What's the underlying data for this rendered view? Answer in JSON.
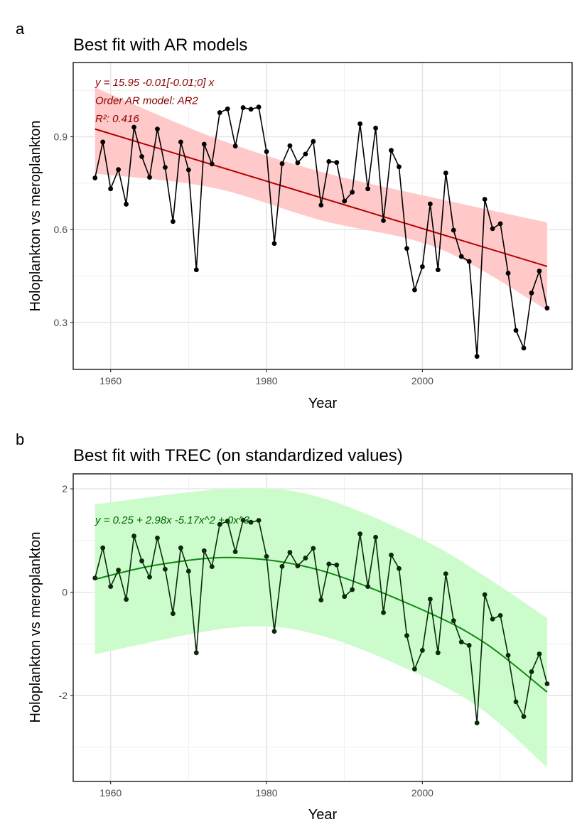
{
  "chart_data": [
    {
      "type": "line",
      "panel_tag": "a",
      "title": "Best fit with AR models",
      "xlabel": "Year",
      "ylabel": "Holoplankton vs meroplankton",
      "xlim": [
        1955.2,
        2019.2
      ],
      "ylim": [
        0.148,
        1.14
      ],
      "x_ticks": [
        1960,
        1980,
        2000
      ],
      "x_tick_labels": [
        "1960",
        "1980",
        "2000"
      ],
      "y_ticks": [
        0.3,
        0.6,
        0.9
      ],
      "y_tick_labels": [
        "0.3",
        "0.6",
        "0.9"
      ],
      "y_minor": [
        0.45,
        0.75,
        1.05
      ],
      "x_minor": [
        1970,
        1990,
        2010
      ],
      "grid": true,
      "annotations": [
        "y = 15.95  -0.01[-0.01;0] x",
        "Order AR model: AR2",
        "R²: 0.416"
      ],
      "colors": {
        "points": "#000000",
        "fit": "#b30000",
        "ribbon": "#ffc9c9",
        "annotation": "#8b0000"
      },
      "x": [
        1958,
        1959,
        1960,
        1961,
        1962,
        1963,
        1964,
        1965,
        1966,
        1967,
        1968,
        1969,
        1970,
        1971,
        1972,
        1973,
        1974,
        1975,
        1976,
        1977,
        1978,
        1979,
        1980,
        1981,
        1982,
        1983,
        1984,
        1985,
        1986,
        1987,
        1988,
        1989,
        1990,
        1991,
        1992,
        1993,
        1994,
        1995,
        1996,
        1997,
        1998,
        1999,
        2000,
        2001,
        2002,
        2003,
        2004,
        2005,
        2006,
        2007,
        2008,
        2009,
        2010,
        2011,
        2012,
        2013,
        2014,
        2015,
        2016
      ],
      "y": [
        0.767,
        0.883,
        0.732,
        0.794,
        0.682,
        0.931,
        0.836,
        0.769,
        0.925,
        0.801,
        0.626,
        0.883,
        0.793,
        0.47,
        0.876,
        0.812,
        0.978,
        0.99,
        0.87,
        0.994,
        0.989,
        0.996,
        0.852,
        0.555,
        0.813,
        0.871,
        0.816,
        0.844,
        0.885,
        0.679,
        0.82,
        0.817,
        0.692,
        0.721,
        0.942,
        0.732,
        0.928,
        0.629,
        0.856,
        0.803,
        0.539,
        0.405,
        0.48,
        0.683,
        0.47,
        0.783,
        0.598,
        0.513,
        0.497,
        0.19,
        0.698,
        0.603,
        0.619,
        0.459,
        0.274,
        0.217,
        0.395,
        0.466,
        0.346
      ],
      "fit": {
        "x": [
          1958,
          2016
        ],
        "y": [
          0.925,
          0.481
        ]
      },
      "ribbon": {
        "x": [
          1958,
          1973,
          1987,
          2002,
          2016
        ],
        "lower": [
          0.781,
          0.736,
          0.63,
          0.54,
          0.34
        ],
        "upper": [
          1.059,
          0.9,
          0.787,
          0.7,
          0.623
        ]
      }
    },
    {
      "type": "line",
      "panel_tag": "b",
      "title": "Best fit with TREC (on standardized values)",
      "xlabel": "Year",
      "ylabel": "Holoplankton vs meroplankton",
      "xlim": [
        1955.2,
        2019.2
      ],
      "ylim": [
        -3.66,
        2.29
      ],
      "x_ticks": [
        1960,
        1980,
        2000
      ],
      "x_tick_labels": [
        "1960",
        "1980",
        "2000"
      ],
      "y_ticks": [
        -2,
        0,
        2
      ],
      "y_tick_labels": [
        "-2",
        "0",
        "2"
      ],
      "y_minor": [
        -3,
        -1,
        1
      ],
      "x_minor": [
        1970,
        1990,
        2010
      ],
      "grid": true,
      "annotations": [
        "y =  0.25  + 2.98x   -5.17x^2  + 0x^3"
      ],
      "colors": {
        "points": "#0b2a0b",
        "fit": "#118811",
        "ribbon": "#ccfccc",
        "annotation": "#006400"
      },
      "x": [
        1958,
        1959,
        1960,
        1961,
        1962,
        1963,
        1964,
        1965,
        1966,
        1967,
        1968,
        1969,
        1970,
        1971,
        1972,
        1973,
        1974,
        1975,
        1976,
        1977,
        1978,
        1979,
        1980,
        1981,
        1982,
        1983,
        1984,
        1985,
        1986,
        1987,
        1988,
        1989,
        1990,
        1991,
        1992,
        1993,
        1994,
        1995,
        1996,
        1997,
        1998,
        1999,
        2000,
        2001,
        2002,
        2003,
        2004,
        2005,
        2006,
        2007,
        2008,
        2009,
        2010,
        2011,
        2012,
        2013,
        2014,
        2015,
        2016
      ],
      "y": [
        0.275,
        0.858,
        0.11,
        0.427,
        -0.138,
        1.087,
        0.606,
        0.294,
        1.05,
        0.445,
        -0.413,
        0.858,
        0.408,
        -1.17,
        0.803,
        0.495,
        1.312,
        1.376,
        0.784,
        1.394,
        1.353,
        1.39,
        0.693,
        -0.757,
        0.5,
        0.771,
        0.509,
        0.661,
        0.849,
        -0.151,
        0.546,
        0.528,
        -0.083,
        0.05,
        1.128,
        0.11,
        1.064,
        -0.394,
        0.72,
        0.459,
        -0.839,
        -1.486,
        -1.124,
        -0.133,
        -1.17,
        0.358,
        -0.55,
        -0.963,
        -1.028,
        -2.528,
        -0.046,
        -0.518,
        -0.45,
        -1.22,
        -2.119,
        -2.404,
        -1.537,
        -1.193,
        -1.771
      ],
      "fit": {
        "x": [
          1958,
          1966,
          1976,
          1987,
          2000,
          2008,
          2016
        ],
        "y": [
          0.25,
          0.53,
          0.67,
          0.42,
          -0.34,
          -0.98,
          -1.93
        ]
      },
      "ribbon": {
        "x": [
          1958,
          1976,
          1987,
          2000,
          2008,
          2016
        ],
        "lower": [
          -1.2,
          -0.68,
          -0.84,
          -1.62,
          -2.31,
          -3.39
        ],
        "upper": [
          1.7,
          2.01,
          1.83,
          1.02,
          0.31,
          -0.5
        ]
      }
    }
  ]
}
